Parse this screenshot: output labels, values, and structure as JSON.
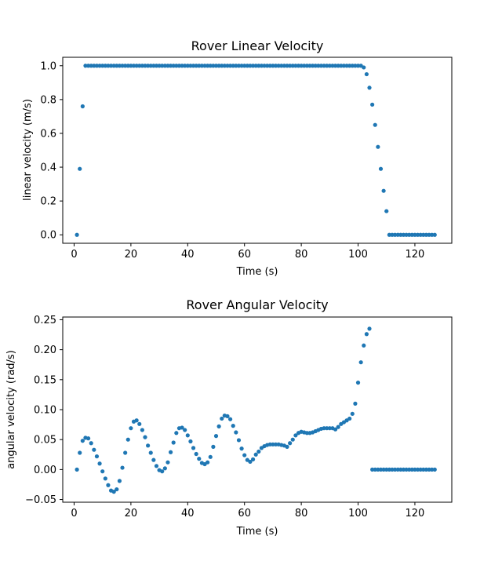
{
  "chart_data": [
    {
      "type": "scatter",
      "title": "Rover Linear Velocity",
      "xlabel": "Time (s)",
      "ylabel": "linear velocity (m/s)",
      "xlim": [
        -4,
        133
      ],
      "ylim": [
        -0.05,
        1.05
      ],
      "xticks": [
        0,
        20,
        40,
        60,
        80,
        100,
        120
      ],
      "yticks": [
        0.0,
        0.2,
        0.4,
        0.6,
        0.8,
        1.0
      ],
      "ytick_labels": [
        "0.0",
        "0.2",
        "0.4",
        "0.6",
        "0.8",
        "1.0"
      ],
      "color": "#1f77b4",
      "grid": false,
      "series": [
        {
          "x": [
            1,
            2,
            3,
            4,
            5,
            6,
            7,
            8,
            9,
            10,
            11,
            12,
            13,
            14,
            15,
            16,
            17,
            18,
            19,
            20,
            21,
            22,
            23,
            24,
            25,
            26,
            27,
            28,
            29,
            30,
            31,
            32,
            33,
            34,
            35,
            36,
            37,
            38,
            39,
            40,
            41,
            42,
            43,
            44,
            45,
            46,
            47,
            48,
            49,
            50,
            51,
            52,
            53,
            54,
            55,
            56,
            57,
            58,
            59,
            60,
            61,
            62,
            63,
            64,
            65,
            66,
            67,
            68,
            69,
            70,
            71,
            72,
            73,
            74,
            75,
            76,
            77,
            78,
            79,
            80,
            81,
            82,
            83,
            84,
            85,
            86,
            87,
            88,
            89,
            90,
            91,
            92,
            93,
            94,
            95,
            96,
            97,
            98,
            99,
            100,
            101,
            102,
            103,
            104,
            105,
            106,
            107,
            108,
            109,
            110,
            111,
            112,
            113,
            114,
            115,
            116,
            117,
            118,
            119,
            120,
            121,
            122,
            123,
            124,
            125,
            126,
            127
          ],
          "y": [
            0.0,
            0.39,
            0.76,
            1.0,
            1.0,
            1.0,
            1.0,
            1.0,
            1.0,
            1.0,
            1.0,
            1.0,
            1.0,
            1.0,
            1.0,
            1.0,
            1.0,
            1.0,
            1.0,
            1.0,
            1.0,
            1.0,
            1.0,
            1.0,
            1.0,
            1.0,
            1.0,
            1.0,
            1.0,
            1.0,
            1.0,
            1.0,
            1.0,
            1.0,
            1.0,
            1.0,
            1.0,
            1.0,
            1.0,
            1.0,
            1.0,
            1.0,
            1.0,
            1.0,
            1.0,
            1.0,
            1.0,
            1.0,
            1.0,
            1.0,
            1.0,
            1.0,
            1.0,
            1.0,
            1.0,
            1.0,
            1.0,
            1.0,
            1.0,
            1.0,
            1.0,
            1.0,
            1.0,
            1.0,
            1.0,
            1.0,
            1.0,
            1.0,
            1.0,
            1.0,
            1.0,
            1.0,
            1.0,
            1.0,
            1.0,
            1.0,
            1.0,
            1.0,
            1.0,
            1.0,
            1.0,
            1.0,
            1.0,
            1.0,
            1.0,
            1.0,
            1.0,
            1.0,
            1.0,
            1.0,
            1.0,
            1.0,
            1.0,
            1.0,
            1.0,
            1.0,
            1.0,
            1.0,
            1.0,
            1.0,
            1.0,
            0.99,
            0.95,
            0.87,
            0.77,
            0.65,
            0.52,
            0.39,
            0.26,
            0.14,
            0.0,
            0.0,
            0.0,
            0.0,
            0.0,
            0.0,
            0.0,
            0.0,
            0.0,
            0.0,
            0.0,
            0.0,
            0.0,
            0.0,
            0.0,
            0.0,
            0.0
          ]
        }
      ]
    },
    {
      "type": "scatter",
      "title": "Rover Angular Velocity",
      "xlabel": "Time (s)",
      "ylabel": "angular velocity (rad/s)",
      "xlim": [
        -4,
        133
      ],
      "ylim": [
        -0.0545,
        0.2545
      ],
      "xticks": [
        0,
        20,
        40,
        60,
        80,
        100,
        120
      ],
      "yticks": [
        -0.05,
        0.0,
        0.05,
        0.1,
        0.15,
        0.2,
        0.25
      ],
      "ytick_labels": [
        "−0.05",
        "0.00",
        "0.05",
        "0.10",
        "0.15",
        "0.20",
        "0.25"
      ],
      "color": "#1f77b4",
      "grid": false,
      "series": [
        {
          "x": [
            1,
            2,
            3,
            4,
            5,
            6,
            7,
            8,
            9,
            10,
            11,
            12,
            13,
            14,
            15,
            16,
            17,
            18,
            19,
            20,
            21,
            22,
            23,
            24,
            25,
            26,
            27,
            28,
            29,
            30,
            31,
            32,
            33,
            34,
            35,
            36,
            37,
            38,
            39,
            40,
            41,
            42,
            43,
            44,
            45,
            46,
            47,
            48,
            49,
            50,
            51,
            52,
            53,
            54,
            55,
            56,
            57,
            58,
            59,
            60,
            61,
            62,
            63,
            64,
            65,
            66,
            67,
            68,
            69,
            70,
            71,
            72,
            73,
            74,
            75,
            76,
            77,
            78,
            79,
            80,
            81,
            82,
            83,
            84,
            85,
            86,
            87,
            88,
            89,
            90,
            91,
            92,
            93,
            94,
            95,
            96,
            97,
            98,
            99,
            100,
            101,
            102,
            103,
            104,
            105,
            106,
            107,
            108,
            109,
            110,
            111,
            112,
            113,
            114,
            115,
            116,
            117,
            118,
            119,
            120,
            121,
            122,
            123,
            124,
            125,
            126,
            127
          ],
          "y": [
            0.0,
            0.028,
            0.048,
            0.053,
            0.052,
            0.044,
            0.033,
            0.022,
            0.01,
            -0.003,
            -0.015,
            -0.026,
            -0.035,
            -0.037,
            -0.033,
            -0.019,
            0.003,
            0.028,
            0.05,
            0.069,
            0.08,
            0.082,
            0.076,
            0.066,
            0.054,
            0.04,
            0.028,
            0.016,
            0.006,
            -0.001,
            -0.003,
            0.002,
            0.012,
            0.029,
            0.045,
            0.061,
            0.069,
            0.07,
            0.066,
            0.057,
            0.047,
            0.036,
            0.026,
            0.018,
            0.011,
            0.009,
            0.012,
            0.021,
            0.038,
            0.056,
            0.072,
            0.085,
            0.09,
            0.089,
            0.084,
            0.073,
            0.062,
            0.049,
            0.035,
            0.024,
            0.016,
            0.013,
            0.017,
            0.025,
            0.03,
            0.036,
            0.039,
            0.041,
            0.042,
            0.042,
            0.042,
            0.042,
            0.041,
            0.04,
            0.038,
            0.044,
            0.05,
            0.057,
            0.061,
            0.063,
            0.062,
            0.061,
            0.061,
            0.062,
            0.064,
            0.066,
            0.068,
            0.069,
            0.069,
            0.069,
            0.069,
            0.067,
            0.071,
            0.076,
            0.079,
            0.082,
            0.085,
            0.093,
            0.11,
            0.145,
            0.179,
            0.207,
            0.226,
            0.235,
            0.0,
            0.0,
            0.0,
            0.0,
            0.0,
            0.0,
            0.0,
            0.0,
            0.0,
            0.0,
            0.0,
            0.0,
            0.0,
            0.0,
            0.0,
            0.0,
            0.0,
            0.0,
            0.0,
            0.0,
            0.0,
            0.0,
            0.0
          ]
        }
      ]
    }
  ]
}
